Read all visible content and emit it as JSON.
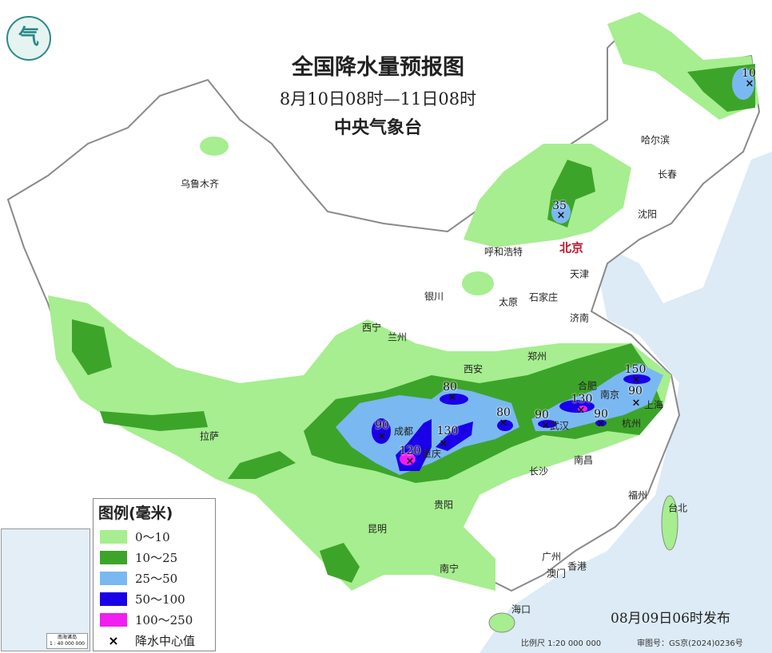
{
  "header": {
    "title": "全国降水量预报图",
    "period": "8月10日08时—11日08时",
    "agency": "中央气象台",
    "logo_text": "气"
  },
  "legend": {
    "title": "图例(毫米)",
    "items": [
      {
        "label": "0～10",
        "color": "#a6ee8f"
      },
      {
        "label": "10～25",
        "color": "#3da42a"
      },
      {
        "label": "25～50",
        "color": "#7ab8f2"
      },
      {
        "label": "50～100",
        "color": "#1a00e8"
      },
      {
        "label": "100～250",
        "color": "#f01ef0"
      }
    ],
    "center_symbol": "×",
    "center_label": "降水中心值"
  },
  "cities": [
    "乌鲁木齐",
    "哈尔滨",
    "长春",
    "沈阳",
    "呼和浩特",
    "北京",
    "天津",
    "石家庄",
    "太原",
    "银川",
    "济南",
    "西宁",
    "兰州",
    "郑州",
    "西安",
    "合肥",
    "南京",
    "上海",
    "成都",
    "重庆",
    "武汉",
    "杭州",
    "拉萨",
    "南昌",
    "长沙",
    "贵阳",
    "福州",
    "台北",
    "昆明",
    "南宁",
    "广州",
    "香港",
    "澳门",
    "海口"
  ],
  "rain_centers": [
    "10",
    "35",
    "90",
    "120",
    "80",
    "130",
    "80",
    "90",
    "130",
    "90",
    "150",
    "90"
  ],
  "inset": {
    "title": "南海诸岛",
    "scale": "1 : 40 000 000"
  },
  "footer": {
    "issued": "08月09日06时发布",
    "scale": "比例尺 1:20 000 000",
    "review": "审图号：GS京(2024)0236号"
  },
  "colors": {
    "sea": "#dcebf5",
    "land": "#ffffff",
    "border": "#8a8a8a"
  }
}
